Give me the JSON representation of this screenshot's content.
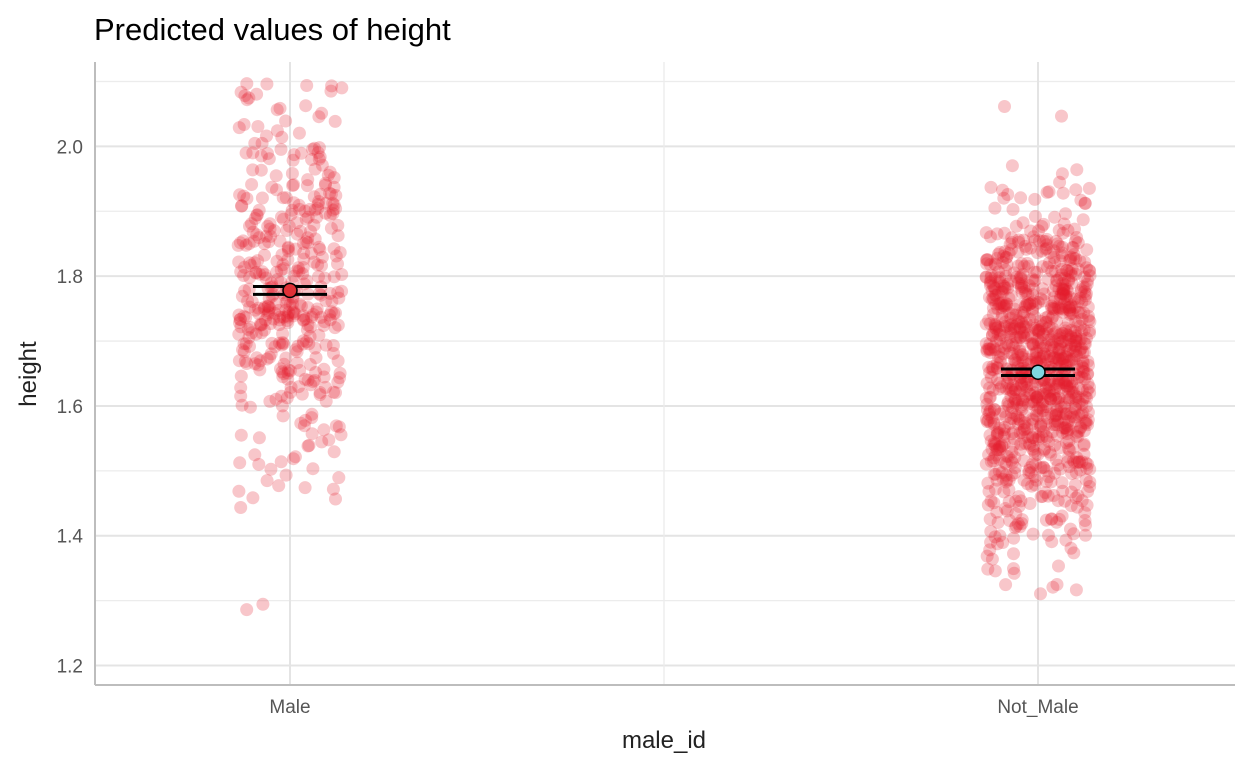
{
  "chart_data": {
    "type": "scatter",
    "title": "Predicted values of height",
    "xlabel": "male_id",
    "ylabel": "height",
    "categories": [
      "Male",
      "Not_Male"
    ],
    "ylim": [
      1.17,
      2.13
    ],
    "yticks": [
      1.2,
      1.4,
      1.6,
      1.8,
      2.0
    ],
    "ytick_labels": [
      "1.2",
      "1.4",
      "1.6",
      "1.8",
      "2.0"
    ],
    "grid": true,
    "raw_points": {
      "color": "#e41a2c",
      "opacity": 0.25,
      "groups": [
        {
          "category": "Male",
          "n": 420,
          "mean": 1.778,
          "sd": 0.145,
          "min": 1.22,
          "max": 2.1
        },
        {
          "category": "Not_Male",
          "n": 1050,
          "mean": 1.652,
          "sd": 0.125,
          "min": 1.3,
          "max": 2.07
        }
      ]
    },
    "series": [
      {
        "category": "Male",
        "predicted": 1.778,
        "ci_low": 1.772,
        "ci_high": 1.784,
        "color": "#e03036"
      },
      {
        "category": "Not_Male",
        "predicted": 1.652,
        "ci_low": 1.647,
        "ci_high": 1.657,
        "color": "#7fd6e0"
      }
    ]
  }
}
